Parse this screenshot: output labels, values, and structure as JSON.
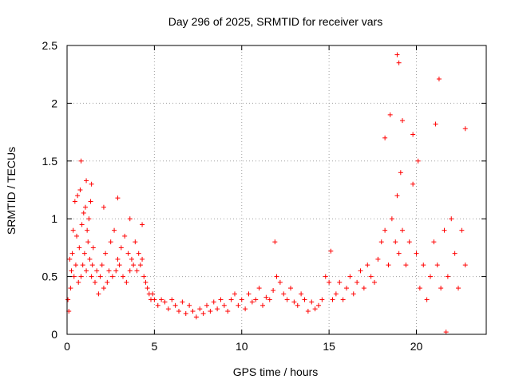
{
  "chart_data": {
    "type": "scatter",
    "title": "Day 296 of 2025, SRMTID for receiver vars",
    "xlabel": "GPS time / hours",
    "ylabel": "SRMTID / TECUs",
    "xlim": [
      0,
      24
    ],
    "ylim": [
      0,
      2.5
    ],
    "xticks": [
      0,
      5,
      10,
      15,
      20
    ],
    "yticks": [
      0,
      0.5,
      1,
      1.5,
      2,
      2.5
    ],
    "xtick_labels": [
      "0",
      "5",
      "10",
      "15",
      "20"
    ],
    "ytick_labels": [
      "0",
      "0.5",
      "1",
      "1.5",
      "2",
      "2.5"
    ],
    "grid": true,
    "marker": "+",
    "series": [
      {
        "name": "SRMTID",
        "color": "#ff0000",
        "x": [
          0.05,
          0.1,
          0.15,
          0.2,
          0.25,
          0.3,
          0.35,
          0.4,
          0.45,
          0.5,
          0.55,
          0.6,
          0.65,
          0.7,
          0.75,
          0.8,
          0.85,
          0.9,
          0.95,
          1.0,
          1.05,
          1.1,
          1.15,
          1.2,
          1.25,
          1.3,
          1.35,
          1.4,
          1.45,
          1.5,
          1.6,
          1.7,
          1.8,
          1.9,
          2.0,
          2.1,
          2.2,
          2.3,
          2.4,
          2.5,
          2.6,
          2.7,
          2.8,
          2.9,
          3.0,
          3.1,
          3.2,
          3.3,
          3.4,
          3.5,
          3.6,
          3.7,
          3.8,
          3.9,
          4.0,
          4.1,
          4.2,
          4.3,
          4.4,
          4.5,
          4.6,
          4.7,
          4.8,
          4.9,
          5.0,
          5.2,
          5.4,
          5.6,
          5.8,
          6.0,
          6.2,
          6.4,
          6.6,
          6.8,
          7.0,
          7.2,
          7.4,
          7.6,
          7.8,
          8.0,
          8.2,
          8.4,
          8.6,
          8.8,
          9.0,
          9.2,
          9.4,
          9.6,
          9.8,
          10.0,
          10.2,
          10.4,
          10.6,
          10.8,
          11.0,
          11.2,
          11.4,
          11.6,
          11.8,
          12.0,
          12.2,
          12.4,
          12.6,
          12.8,
          13.0,
          13.2,
          13.4,
          13.6,
          13.8,
          14.0,
          14.2,
          14.4,
          14.6,
          14.8,
          15.0,
          15.2,
          15.4,
          15.6,
          15.8,
          16.0,
          16.2,
          16.4,
          16.6,
          16.8,
          17.0,
          17.2,
          17.4,
          17.6,
          17.8,
          18.0,
          18.2,
          18.4,
          18.6,
          18.8,
          18.9,
          19.0,
          19.1,
          19.2,
          19.4,
          19.6,
          19.8,
          20.0,
          20.2,
          20.4,
          20.6,
          20.8,
          21.0,
          21.2,
          21.4,
          21.6,
          21.8,
          22.0,
          22.2,
          22.4,
          22.6,
          22.8,
          0.8,
          1.1,
          1.4,
          2.1,
          2.9,
          3.6,
          4.3,
          11.9,
          15.1,
          18.2,
          18.5,
          18.9,
          19.0,
          19.2,
          19.8,
          20.1,
          21.1,
          21.3,
          21.7,
          22.8
        ],
        "y": [
          0.3,
          0.2,
          0.65,
          0.4,
          0.55,
          0.7,
          0.9,
          0.5,
          1.15,
          0.6,
          0.85,
          1.2,
          0.45,
          0.75,
          1.25,
          0.5,
          0.95,
          0.6,
          1.05,
          0.7,
          1.1,
          0.55,
          0.9,
          0.8,
          1.0,
          0.65,
          1.15,
          0.5,
          0.6,
          0.75,
          0.45,
          0.55,
          0.35,
          0.5,
          0.6,
          0.4,
          0.7,
          0.45,
          0.55,
          0.8,
          0.5,
          0.9,
          0.55,
          0.65,
          0.6,
          0.75,
          0.5,
          0.85,
          0.45,
          0.7,
          0.55,
          0.65,
          0.6,
          0.8,
          0.55,
          0.7,
          0.6,
          0.65,
          0.5,
          0.45,
          0.4,
          0.35,
          0.3,
          0.35,
          0.3,
          0.25,
          0.3,
          0.28,
          0.22,
          0.3,
          0.25,
          0.2,
          0.28,
          0.18,
          0.25,
          0.2,
          0.15,
          0.22,
          0.18,
          0.25,
          0.2,
          0.28,
          0.22,
          0.3,
          0.25,
          0.2,
          0.3,
          0.35,
          0.25,
          0.3,
          0.22,
          0.35,
          0.28,
          0.3,
          0.4,
          0.25,
          0.32,
          0.3,
          0.38,
          0.5,
          0.45,
          0.35,
          0.3,
          0.4,
          0.28,
          0.25,
          0.35,
          0.3,
          0.2,
          0.28,
          0.22,
          0.25,
          0.3,
          0.5,
          0.45,
          0.3,
          0.35,
          0.45,
          0.3,
          0.4,
          0.5,
          0.35,
          0.45,
          0.55,
          0.4,
          0.6,
          0.5,
          0.45,
          0.65,
          0.8,
          0.9,
          0.6,
          1.0,
          0.8,
          1.2,
          0.7,
          1.4,
          0.9,
          0.6,
          0.8,
          1.3,
          0.7,
          0.4,
          0.6,
          0.3,
          0.5,
          0.8,
          0.6,
          0.4,
          0.9,
          0.5,
          1.0,
          0.7,
          0.4,
          0.9,
          0.6,
          1.5,
          1.33,
          1.3,
          1.1,
          1.18,
          1.0,
          0.95,
          0.8,
          0.72,
          1.7,
          1.9,
          2.42,
          2.35,
          1.85,
          1.73,
          1.5,
          1.82,
          2.21,
          0.02,
          1.78
        ]
      }
    ]
  }
}
